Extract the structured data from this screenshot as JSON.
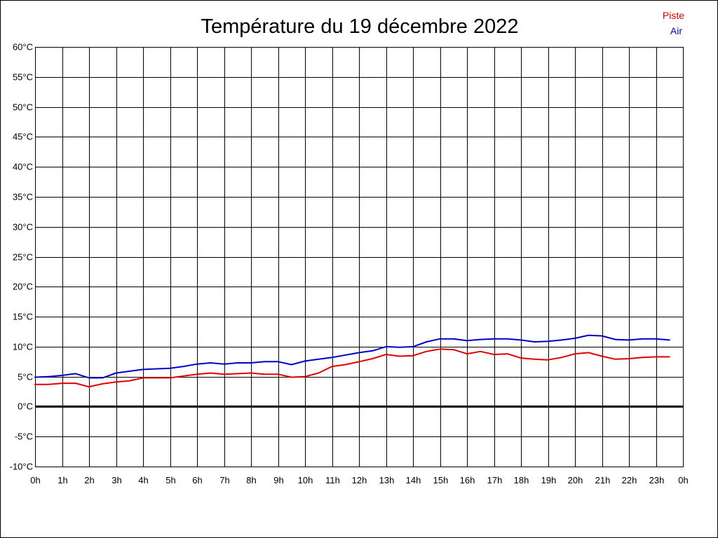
{
  "chart_data": {
    "type": "line",
    "title": "Température du 19 décembre 2022",
    "xlabel": "",
    "ylabel": "",
    "ylim": [
      -10,
      60
    ],
    "y_ticks": [
      60,
      55,
      50,
      45,
      40,
      35,
      30,
      25,
      20,
      15,
      10,
      5,
      0,
      -5,
      -10
    ],
    "y_tick_labels": [
      "60°C",
      "55°C",
      "50°C",
      "45°C",
      "40°C",
      "35°C",
      "30°C",
      "25°C",
      "20°C",
      "15°C",
      "10°C",
      "5°C",
      "0°C",
      "-5°C",
      "-10°C"
    ],
    "x_ticks": [
      0,
      1,
      2,
      3,
      4,
      5,
      6,
      7,
      8,
      9,
      10,
      11,
      12,
      13,
      14,
      15,
      16,
      17,
      18,
      19,
      20,
      21,
      22,
      23,
      24
    ],
    "x_tick_labels": [
      "0h",
      "1h",
      "2h",
      "3h",
      "4h",
      "5h",
      "6h",
      "7h",
      "8h",
      "9h",
      "10h",
      "11h",
      "12h",
      "13h",
      "14h",
      "15h",
      "16h",
      "17h",
      "18h",
      "19h",
      "20h",
      "21h",
      "22h",
      "23h",
      "0h"
    ],
    "xlim": [
      0,
      24
    ],
    "grid": true,
    "zero_line": true,
    "legend_position": "top-right",
    "x": [
      0,
      0.5,
      1,
      1.5,
      2,
      2.5,
      3,
      3.5,
      4,
      4.5,
      5,
      5.5,
      6,
      6.5,
      7,
      7.5,
      8,
      8.5,
      9,
      9.5,
      10,
      10.5,
      11,
      11.5,
      12,
      12.5,
      13,
      13.5,
      14,
      14.5,
      15,
      15.5,
      16,
      16.5,
      17,
      17.5,
      18,
      18.5,
      19,
      19.5,
      20,
      20.5,
      21,
      21.5,
      22,
      22.5,
      23,
      23.5
    ],
    "series": [
      {
        "name": "Piste",
        "color": "#e00000",
        "values": [
          3.7,
          3.7,
          3.9,
          3.9,
          3.3,
          3.8,
          4.1,
          4.3,
          4.8,
          4.8,
          4.8,
          5.1,
          5.4,
          5.6,
          5.4,
          5.5,
          5.6,
          5.4,
          5.4,
          4.9,
          5.0,
          5.6,
          6.7,
          7.0,
          7.5,
          8.0,
          8.7,
          8.4,
          8.5,
          9.2,
          9.6,
          9.5,
          8.8,
          9.2,
          8.7,
          8.8,
          8.1,
          7.9,
          7.8,
          8.2,
          8.8,
          9.0,
          8.4,
          7.9,
          8.0,
          8.2,
          8.3,
          8.3
        ]
      },
      {
        "name": "Air",
        "color": "#0000c8",
        "values": [
          4.9,
          5.0,
          5.2,
          5.5,
          4.8,
          4.8,
          5.6,
          5.9,
          6.2,
          6.3,
          6.4,
          6.7,
          7.1,
          7.3,
          7.1,
          7.3,
          7.3,
          7.5,
          7.5,
          7.0,
          7.6,
          7.9,
          8.2,
          8.6,
          9.0,
          9.3,
          10.0,
          9.9,
          10.0,
          10.8,
          11.3,
          11.3,
          11.0,
          11.2,
          11.3,
          11.3,
          11.1,
          10.8,
          10.9,
          11.1,
          11.4,
          11.9,
          11.8,
          11.2,
          11.1,
          11.3,
          11.3,
          11.1
        ]
      }
    ]
  }
}
